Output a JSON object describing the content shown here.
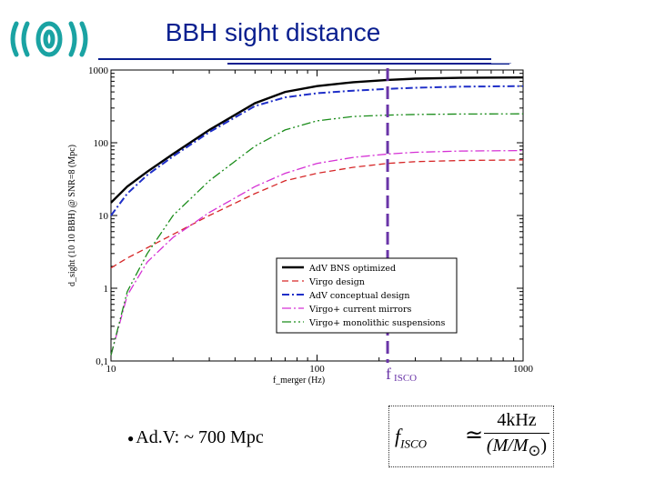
{
  "slide": {
    "title": "BBH sight distance",
    "bullet_text": "Ad.V: ~ 700 Mpc",
    "formula": {
      "lhs_base": "f",
      "lhs_sub": "ISCO",
      "relation": "≃",
      "numerator": "4kHz",
      "denominator_prefix": "(M/M",
      "denominator_sub": "⊙",
      "denominator_suffix": ")"
    }
  },
  "colors": {
    "title": "#0a1f8f",
    "isco_line": "#6a35a8"
  },
  "chart_data": {
    "type": "line",
    "xscale": "log",
    "yscale": "log",
    "xlim": [
      10,
      1000
    ],
    "ylim": [
      0.1,
      1000
    ],
    "xlabel": "f_merger (Hz)",
    "ylabel": "d_sight (10 10 BBH) @ SNR=8 (Mpc)",
    "x_ticks": [
      "10",
      "100",
      "1000"
    ],
    "y_ticks": [
      "0,1",
      "1",
      "10",
      "100",
      "1000"
    ],
    "isco_label": "f",
    "isco_sub": "ISCO",
    "isco_x": 220,
    "legend_position": "lower-right",
    "series": [
      {
        "name": "AdV BNS optimized",
        "color": "#000000",
        "dash": "",
        "width": 2.4,
        "x": [
          10,
          12,
          15,
          20,
          30,
          50,
          70,
          100,
          150,
          220,
          300,
          500,
          1000
        ],
        "y": [
          15,
          25,
          40,
          70,
          150,
          350,
          500,
          600,
          680,
          730,
          760,
          780,
          790
        ]
      },
      {
        "name": "Virgo design",
        "color": "#d62728",
        "dash": "7,4",
        "width": 1.3,
        "x": [
          10,
          12,
          15,
          20,
          30,
          50,
          70,
          100,
          150,
          220,
          300,
          500,
          1000
        ],
        "y": [
          1.9,
          2.6,
          3.6,
          5.5,
          10,
          20,
          30,
          38,
          46,
          52,
          55,
          57,
          58
        ]
      },
      {
        "name": "AdV conceptual design",
        "color": "#1f2fc8",
        "dash": "8,3,2,3",
        "width": 2,
        "x": [
          10,
          12,
          15,
          20,
          30,
          50,
          70,
          100,
          150,
          220,
          300,
          500,
          1000
        ],
        "y": [
          10,
          20,
          36,
          65,
          140,
          320,
          420,
          480,
          520,
          550,
          570,
          590,
          600
        ]
      },
      {
        "name": "Virgo+ current mirrors",
        "color": "#d531d5",
        "dash": "10,3,2,3",
        "width": 1.3,
        "x": [
          10,
          12,
          15,
          20,
          30,
          50,
          70,
          100,
          150,
          220,
          300,
          500,
          1000
        ],
        "y": [
          0.12,
          0.8,
          2.3,
          5,
          11,
          25,
          38,
          52,
          63,
          70,
          74,
          77,
          78
        ]
      },
      {
        "name": "Virgo+ monolithic suspensions",
        "color": "#1a8c1a",
        "dash": "10,3,2,3,2,3",
        "width": 1.3,
        "x": [
          10,
          12,
          15,
          20,
          30,
          50,
          70,
          100,
          150,
          220,
          300,
          500,
          1000
        ],
        "y": [
          0.12,
          0.9,
          3,
          10,
          30,
          90,
          150,
          200,
          230,
          240,
          245,
          248,
          250
        ]
      }
    ]
  }
}
